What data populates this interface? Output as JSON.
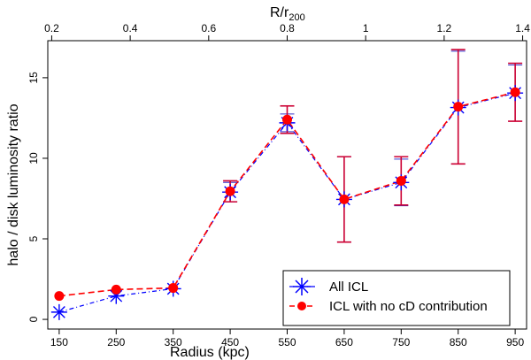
{
  "chart_data": {
    "type": "line",
    "xlabel": "Radius (kpc)",
    "ylabel": "halo / disk  luminosity ratio",
    "top_xlabel_main": "R/r",
    "top_xlabel_sub": "200",
    "x": [
      150,
      250,
      350,
      450,
      550,
      650,
      750,
      850,
      950
    ],
    "xlim": [
      130,
      970
    ],
    "ylim": [
      -0.6,
      17.3
    ],
    "xticks": [
      150,
      250,
      350,
      450,
      550,
      650,
      750,
      850,
      950
    ],
    "xtick_labels": [
      "150",
      "250",
      "350",
      "450",
      "550",
      "650",
      "750",
      "850",
      "950"
    ],
    "yticks": [
      0,
      5,
      10,
      15
    ],
    "ytick_labels": [
      "0",
      "5",
      "10",
      "15"
    ],
    "top_axis": {
      "ticks": [
        0.2,
        0.4,
        0.6,
        0.8,
        1.0,
        1.2,
        1.4
      ],
      "tick_labels": [
        "0.2",
        "0.4",
        "0.6",
        "0.8",
        "1",
        "1.2",
        "1.4"
      ],
      "xlim": [
        0.19,
        1.41
      ]
    },
    "grid": false,
    "legend_placement": "bottom-right",
    "series": [
      {
        "name": "All ICL",
        "color": "#0000ff",
        "marker": "asterisk",
        "linestyle": "dash-dot",
        "values": [
          0.45,
          1.45,
          1.9,
          7.9,
          12.2,
          7.45,
          8.5,
          13.15,
          14.05
        ],
        "err_low": [
          0,
          0,
          0,
          0.6,
          0.55,
          2.65,
          1.45,
          3.5,
          1.75
        ],
        "err_high": [
          0,
          0,
          0,
          0.6,
          0.55,
          2.65,
          1.45,
          3.5,
          1.75
        ]
      },
      {
        "name": "ICL with no cD contribution",
        "color": "#ff0000",
        "marker": "filled-circle",
        "linestyle": "dashed",
        "values": [
          1.45,
          1.85,
          1.95,
          7.95,
          12.4,
          7.45,
          8.6,
          13.2,
          14.1
        ],
        "err_low": [
          0,
          0,
          0,
          0.65,
          0.85,
          2.65,
          1.5,
          3.55,
          1.8
        ],
        "err_high": [
          0,
          0,
          0,
          0.65,
          0.85,
          2.65,
          1.5,
          3.55,
          1.8
        ]
      }
    ],
    "errorbar_color": "#cc0033"
  }
}
